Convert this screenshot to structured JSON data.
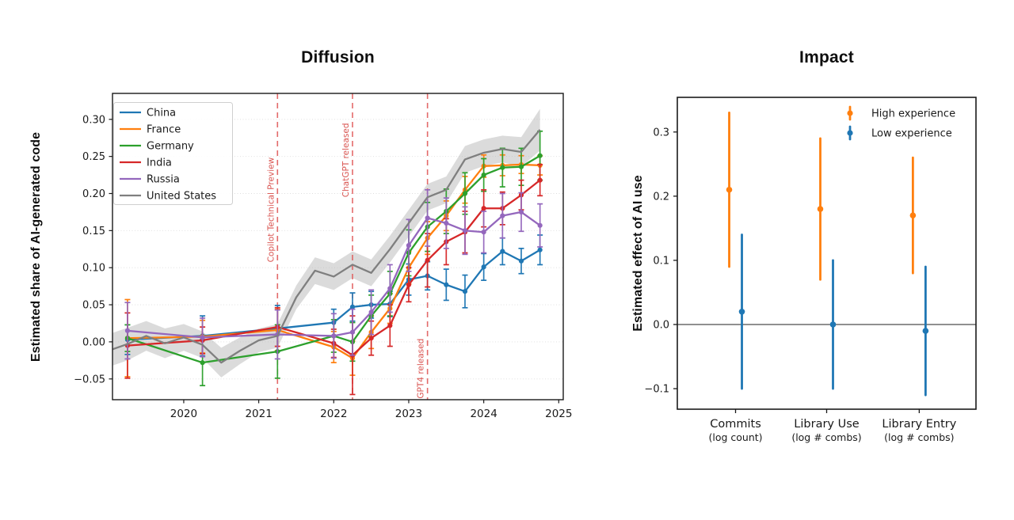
{
  "canvas": {
    "background": "#ffffff"
  },
  "colors": {
    "china": "#1f77b4",
    "france": "#ff7f0e",
    "germany": "#2ca02c",
    "india": "#d62728",
    "russia": "#9467bd",
    "united_states": "#7f7f7f",
    "event_line": "#e05a5a",
    "event_text": "#d9534f",
    "band": "#b0b0b0",
    "axis": "#1a1a1a",
    "grid": "#d8d8d8"
  },
  "chart_data": [
    {
      "type": "line",
      "title": "Diffusion",
      "ylabel": "Estimated share of AI-generated code",
      "xlim": [
        2019.05,
        2025.06
      ],
      "ylim": [
        -0.078,
        0.335
      ],
      "xticks": [
        2020,
        2021,
        2022,
        2023,
        2024,
        2025
      ],
      "yticks": [
        0.3,
        0.25,
        0.2,
        0.15,
        0.1,
        0.05,
        0.0,
        -0.05
      ],
      "grid": "dotted-horizontal",
      "legend_position": "upper-left",
      "events": [
        {
          "x": 2021.25,
          "label": "Copilot Technical Preview",
          "label_y": 0.178
        },
        {
          "x": 2022.25,
          "label": "ChatGPT released",
          "label_y": 0.245
        },
        {
          "x": 2023.25,
          "label": "GPT4 released",
          "label_y": -0.036
        }
      ],
      "series": [
        {
          "name": "China",
          "color": "#1f77b4",
          "x": [
            2019.25,
            2020.25,
            2021.25,
            2022.0,
            2022.25,
            2022.5,
            2022.75,
            2023.0,
            2023.25,
            2023.5,
            2023.75,
            2024.0,
            2024.25,
            2024.5,
            2024.75
          ],
          "y": [
            0.003,
            0.008,
            0.018,
            0.026,
            0.047,
            0.05,
            0.051,
            0.084,
            0.089,
            0.077,
            0.068,
            0.101,
            0.122,
            0.109,
            0.124
          ],
          "err": [
            0.02,
            0.027,
            0.031,
            0.018,
            0.019,
            0.018,
            0.017,
            0.021,
            0.019,
            0.021,
            0.022,
            0.018,
            0.018,
            0.017,
            0.02
          ]
        },
        {
          "name": "France",
          "color": "#ff7f0e",
          "x": [
            2019.25,
            2020.25,
            2021.25,
            2022.0,
            2022.25,
            2022.5,
            2022.75,
            2023.0,
            2023.25,
            2023.5,
            2023.75,
            2024.0,
            2024.25,
            2024.5,
            2024.75
          ],
          "y": [
            0.005,
            0.007,
            0.016,
            -0.007,
            -0.022,
            0.013,
            0.045,
            0.1,
            0.14,
            0.17,
            0.205,
            0.237,
            0.238,
            0.239,
            0.238
          ],
          "err": [
            0.052,
            0.022,
            0.028,
            0.021,
            0.023,
            0.022,
            0.02,
            0.022,
            0.022,
            0.02,
            0.018,
            0.015,
            0.014,
            0.012,
            0.013
          ]
        },
        {
          "name": "Germany",
          "color": "#2ca02c",
          "x": [
            2019.25,
            2020.25,
            2021.25,
            2022.0,
            2022.25,
            2022.5,
            2022.75,
            2023.0,
            2023.25,
            2023.5,
            2023.75,
            2024.0,
            2024.25,
            2024.5,
            2024.75
          ],
          "y": [
            0.005,
            -0.028,
            -0.013,
            0.008,
            0.0,
            0.035,
            0.065,
            0.12,
            0.155,
            0.176,
            0.2,
            0.225,
            0.235,
            0.236,
            0.251
          ],
          "err": [
            0.018,
            0.031,
            0.036,
            0.022,
            0.026,
            0.028,
            0.03,
            0.031,
            0.033,
            0.03,
            0.028,
            0.022,
            0.026,
            0.025,
            0.033
          ]
        },
        {
          "name": "India",
          "color": "#d62728",
          "x": [
            2019.25,
            2020.25,
            2021.25,
            2022.0,
            2022.25,
            2022.5,
            2022.75,
            2023.0,
            2023.25,
            2023.5,
            2023.75,
            2024.0,
            2024.25,
            2024.5,
            2024.75
          ],
          "y": [
            -0.005,
            0.002,
            0.02,
            -0.002,
            -0.018,
            0.005,
            0.022,
            0.077,
            0.11,
            0.135,
            0.148,
            0.18,
            0.18,
            0.198,
            0.218
          ],
          "err": [
            0.044,
            0.018,
            0.026,
            0.019,
            0.053,
            0.023,
            0.028,
            0.023,
            0.036,
            0.031,
            0.028,
            0.025,
            0.022,
            0.02,
            0.021
          ]
        },
        {
          "name": "Russia",
          "color": "#9467bd",
          "x": [
            2019.25,
            2020.25,
            2021.25,
            2022.0,
            2022.25,
            2022.5,
            2022.75,
            2023.0,
            2023.25,
            2023.5,
            2023.75,
            2024.0,
            2024.25,
            2024.5,
            2024.75
          ],
          "y": [
            0.015,
            0.006,
            0.01,
            0.008,
            0.013,
            0.04,
            0.072,
            0.13,
            0.167,
            0.16,
            0.15,
            0.148,
            0.17,
            0.175,
            0.157
          ],
          "err": [
            0.038,
            0.026,
            0.033,
            0.03,
            0.031,
            0.03,
            0.032,
            0.035,
            0.038,
            0.034,
            0.032,
            0.028,
            0.03,
            0.026,
            0.029
          ]
        },
        {
          "name": "United States",
          "color": "#7f7f7f",
          "x": [
            2019.05,
            2019.25,
            2019.5,
            2019.75,
            2020.0,
            2020.25,
            2020.5,
            2020.75,
            2021.0,
            2021.25,
            2021.5,
            2021.75,
            2022.0,
            2022.25,
            2022.5,
            2022.75,
            2023.0,
            2023.25,
            2023.5,
            2023.75,
            2024.0,
            2024.25,
            2024.5,
            2024.75
          ],
          "y": [
            -0.01,
            -0.003,
            0.008,
            -0.002,
            0.006,
            -0.004,
            -0.028,
            -0.012,
            0.002,
            0.008,
            0.06,
            0.096,
            0.088,
            0.104,
            0.093,
            0.125,
            0.16,
            0.195,
            0.205,
            0.246,
            0.255,
            0.26,
            0.256,
            0.286
          ],
          "band": [
            0.022,
            0.022,
            0.02,
            0.02,
            0.018,
            0.018,
            0.02,
            0.018,
            0.016,
            0.016,
            0.016,
            0.018,
            0.018,
            0.018,
            0.018,
            0.018,
            0.018,
            0.018,
            0.018,
            0.018,
            0.018,
            0.018,
            0.02,
            0.028
          ]
        }
      ]
    },
    {
      "type": "errorbar-scatter",
      "title": "Impact",
      "ylabel": "Estimated effect of AI use",
      "categories": [
        {
          "label": "Commits",
          "sub": "(log count)"
        },
        {
          "label": "Library Use",
          "sub": "(log # combs)"
        },
        {
          "label": "Library Entry",
          "sub": "(log # combs)"
        }
      ],
      "ylim": [
        -0.132,
        0.354
      ],
      "yticks": [
        0.3,
        0.2,
        0.1,
        0.0,
        -0.1
      ],
      "zero_line": true,
      "legend_position": "upper-right",
      "series": [
        {
          "name": "High experience",
          "color": "#ff7f0e",
          "values": [
            0.21,
            0.18,
            0.17
          ],
          "ci_low": [
            0.09,
            0.07,
            0.08
          ],
          "ci_high": [
            0.33,
            0.29,
            0.26
          ]
        },
        {
          "name": "Low experience",
          "color": "#1f77b4",
          "values": [
            0.02,
            0.0,
            -0.01
          ],
          "ci_low": [
            -0.1,
            -0.1,
            -0.11
          ],
          "ci_high": [
            0.14,
            0.1,
            0.09
          ]
        }
      ]
    }
  ]
}
